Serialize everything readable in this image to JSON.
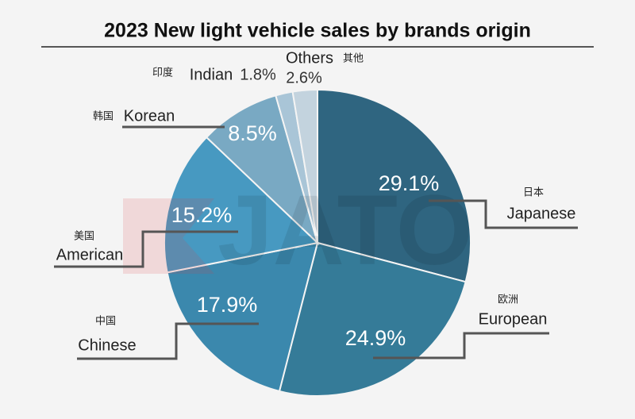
{
  "chart_data": {
    "type": "pie",
    "title": "2023 New light vehicle sales by brands origin",
    "watermark": "JATO",
    "categories": [
      "Japanese",
      "European",
      "Chinese",
      "American",
      "Korean",
      "Indian",
      "Others"
    ],
    "category_labels_zh": [
      "日本",
      "欧洲",
      "中国",
      "美国",
      "韩国",
      "印度",
      "其他"
    ],
    "values": [
      29.1,
      24.9,
      17.9,
      15.2,
      8.5,
      1.8,
      2.6
    ],
    "value_labels": [
      "29.1%",
      "24.9%",
      "17.9%",
      "15.2%",
      "8.5%",
      "1.8%",
      "2.6%"
    ],
    "colors": [
      "#2f6580",
      "#357b98",
      "#3b88ad",
      "#4799c1",
      "#79a9c3",
      "#a9c5d7",
      "#c3d3de"
    ]
  }
}
